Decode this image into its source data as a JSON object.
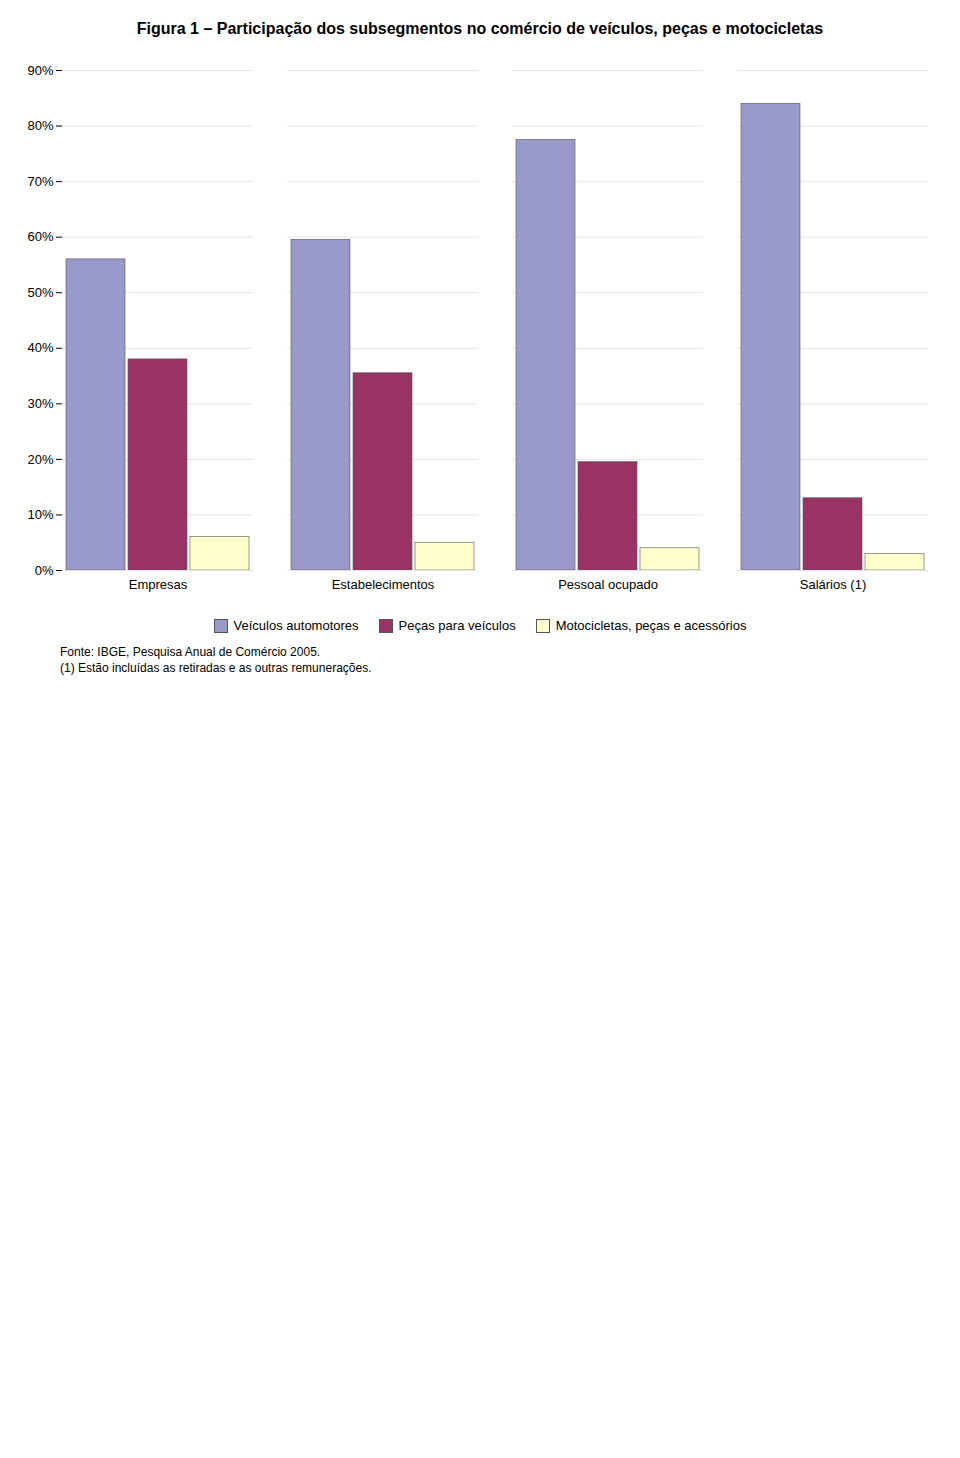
{
  "chart_data": {
    "type": "bar",
    "title": "Figura 1 – Participação dos subsegmentos no comércio de veículos, peças e motocicletas",
    "categories": [
      "Empresas",
      "Estabelecimentos",
      "Pessoal ocupado",
      "Salários (1)"
    ],
    "series": [
      {
        "name": "Veículos automotores",
        "color": "#9999CC",
        "values": [
          56.0,
          59.5,
          77.5,
          84.0
        ]
      },
      {
        "name": "Peças para veículos",
        "color": "#993366",
        "values": [
          38.0,
          35.5,
          19.5,
          13.0
        ]
      },
      {
        "name": "Motocicletas, peças e acessórios",
        "color": "#FFFFCC",
        "values": [
          6.0,
          5.0,
          4.0,
          3.0
        ]
      }
    ],
    "ylim": [
      0,
      90
    ],
    "yticks": [
      {
        "value": 0,
        "label": "0%"
      },
      {
        "value": 10,
        "label": "10%"
      },
      {
        "value": 20,
        "label": "20%"
      },
      {
        "value": 30,
        "label": "30%"
      },
      {
        "value": 40,
        "label": "40%"
      },
      {
        "value": 50,
        "label": "50%"
      },
      {
        "value": 60,
        "label": "60%"
      },
      {
        "value": 70,
        "label": "70%"
      },
      {
        "value": 80,
        "label": "80%"
      },
      {
        "value": 90,
        "label": "90%"
      }
    ],
    "grid": true,
    "legend": "bottom",
    "annotations": [
      "Fonte: IBGE, Pesquisa Anual de Comércio 2005.",
      "(1) Estão incluídas as retiradas e as outras remunerações."
    ]
  }
}
